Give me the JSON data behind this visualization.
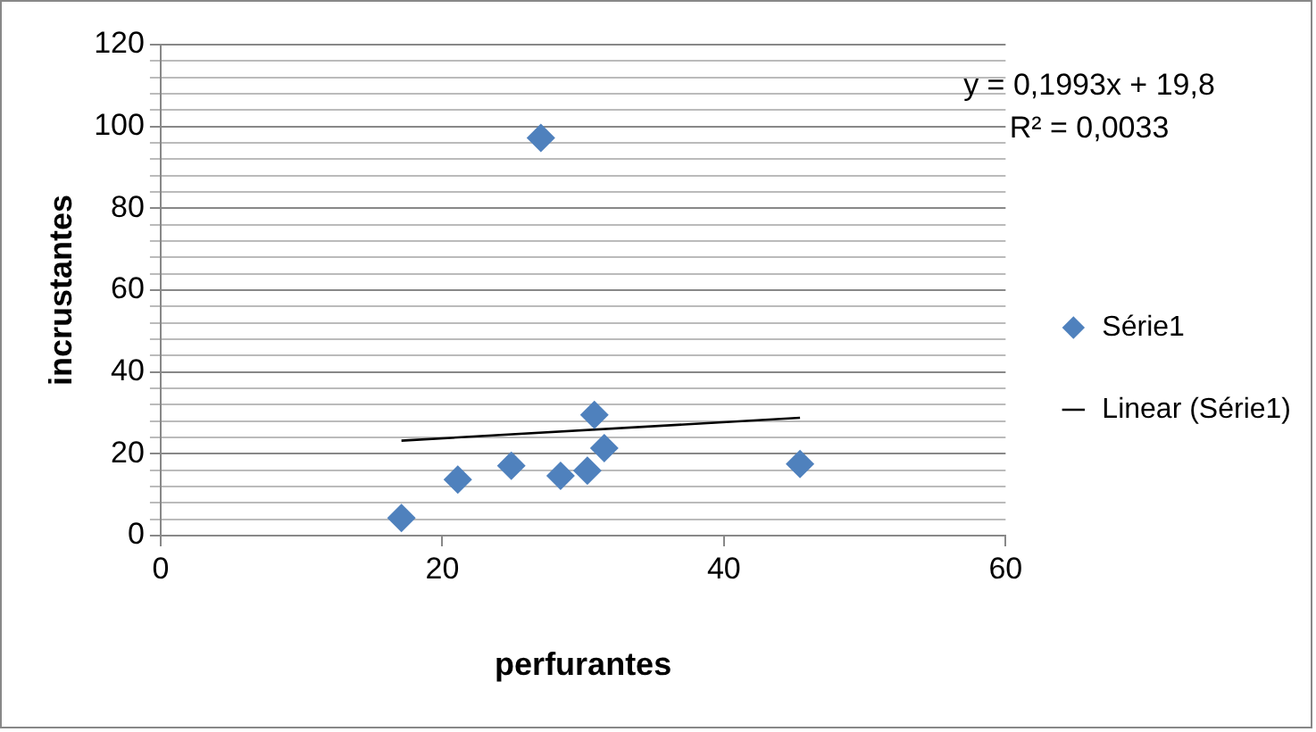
{
  "chart_data": {
    "type": "scatter",
    "xlabel": "perfurantes",
    "ylabel": "incrustantes",
    "series": [
      {
        "name": "Série1",
        "type": "scatter",
        "marker": "diamond",
        "color": "#4f81bd",
        "x": [
          17.1,
          21.1,
          24.9,
          27.0,
          28.4,
          30.3,
          30.8,
          31.5,
          45.4
        ],
        "values": [
          4.3,
          13.7,
          17.1,
          97.2,
          14.6,
          15.9,
          29.5,
          21.4,
          17.5
        ]
      },
      {
        "name": "Linear (Série1)",
        "type": "line",
        "marker": "none",
        "color": "#000000",
        "x": [
          17.1,
          45.4
        ],
        "values": [
          23.2,
          28.8
        ]
      }
    ],
    "xlim": [
      0,
      60
    ],
    "xticks": [
      0,
      20,
      40,
      60
    ],
    "ylim": [
      0,
      120
    ],
    "yticks": [
      0,
      {
        "value": 4,
        "label": null
      },
      {
        "value": 8,
        "label": null
      },
      {
        "value": 12,
        "label": null
      },
      {
        "value": 16,
        "label": null
      },
      20,
      {
        "value": 24,
        "label": null
      },
      {
        "value": 28,
        "label": null
      },
      {
        "value": 32,
        "label": null
      },
      {
        "value": 36,
        "label": null
      },
      40,
      {
        "value": 44,
        "label": null
      },
      {
        "value": 48,
        "label": null
      },
      {
        "value": 52,
        "label": null
      },
      {
        "value": 56,
        "label": null
      },
      60,
      {
        "value": 64,
        "label": null
      },
      {
        "value": 68,
        "label": null
      },
      {
        "value": 72,
        "label": null
      },
      {
        "value": 76,
        "label": null
      },
      80,
      {
        "value": 84,
        "label": null
      },
      {
        "value": 88,
        "label": null
      },
      {
        "value": 92,
        "label": null
      },
      {
        "value": 96,
        "label": null
      },
      100,
      {
        "value": 104,
        "label": null
      },
      {
        "value": 108,
        "label": null
      },
      {
        "value": 112,
        "label": null
      },
      {
        "value": 116,
        "label": null
      },
      120
    ],
    "grid": "y",
    "legend": "right",
    "annotations": [
      "y = 0,1993x + 19,8",
      "R² = 0,0033"
    ]
  }
}
